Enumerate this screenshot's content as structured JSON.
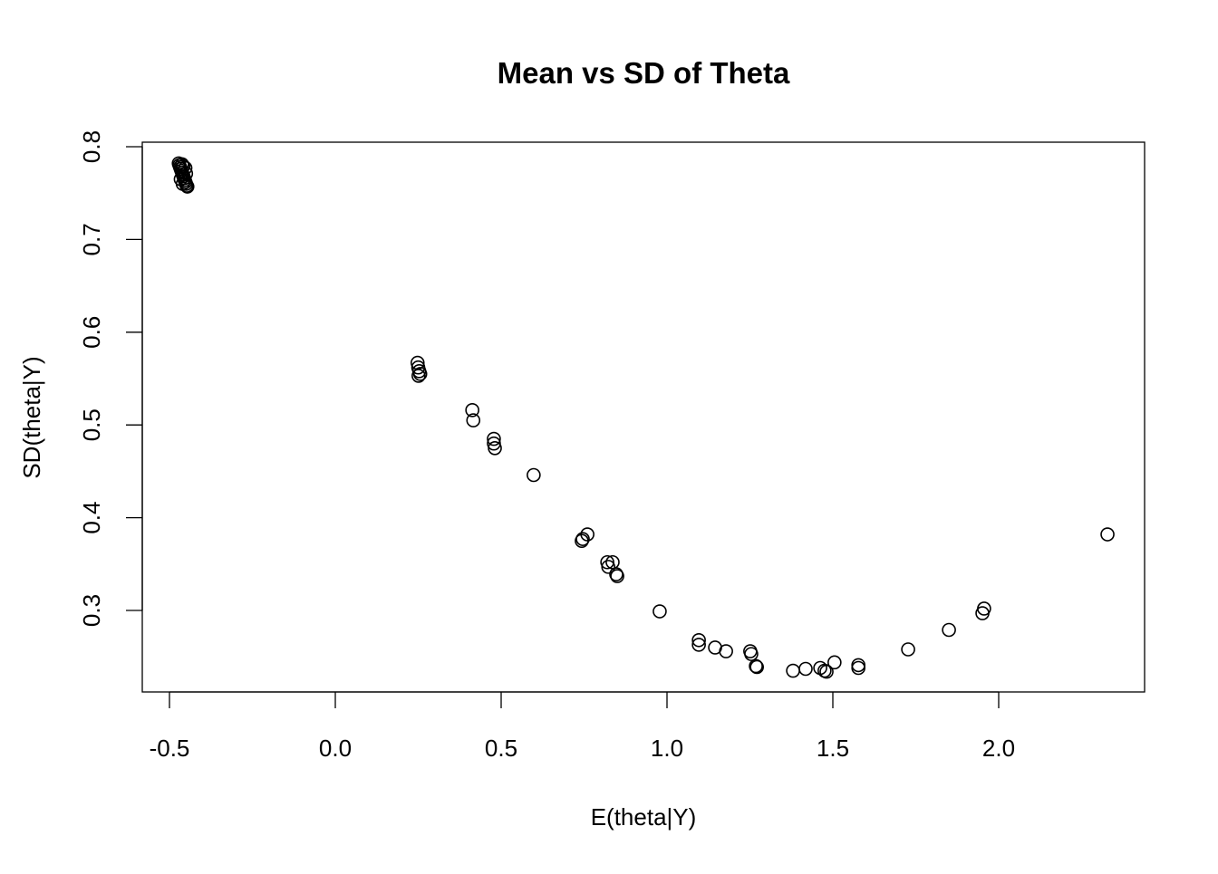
{
  "chart_data": {
    "type": "scatter",
    "title": "Mean vs SD of Theta",
    "xlabel": "E(theta|Y)",
    "ylabel": "SD(theta|Y)",
    "xlim": [
      -0.58,
      2.44
    ],
    "ylim": [
      0.213,
      0.805
    ],
    "xticks": [
      -0.5,
      0.0,
      0.5,
      1.0,
      1.5,
      2.0
    ],
    "xtick_labels": [
      "-0.5",
      "0.0",
      "0.5",
      "1.0",
      "1.5",
      "2.0"
    ],
    "yticks": [
      0.3,
      0.4,
      0.5,
      0.6,
      0.7,
      0.8
    ],
    "ytick_labels": [
      "0.3",
      "0.4",
      "0.5",
      "0.6",
      "0.7",
      "0.8"
    ],
    "grid": false,
    "marker": "open-circle",
    "color": "#000000",
    "points": [
      [
        -0.472,
        0.782
      ],
      [
        -0.47,
        0.78
      ],
      [
        -0.468,
        0.778
      ],
      [
        -0.466,
        0.776
      ],
      [
        -0.464,
        0.774
      ],
      [
        -0.462,
        0.772
      ],
      [
        -0.46,
        0.77
      ],
      [
        -0.458,
        0.768
      ],
      [
        -0.456,
        0.766
      ],
      [
        -0.454,
        0.764
      ],
      [
        -0.452,
        0.762
      ],
      [
        -0.45,
        0.76
      ],
      [
        -0.448,
        0.758
      ],
      [
        -0.446,
        0.757
      ],
      [
        -0.462,
        0.781
      ],
      [
        -0.458,
        0.779
      ],
      [
        -0.452,
        0.777
      ],
      [
        -0.45,
        0.771
      ],
      [
        -0.466,
        0.765
      ],
      [
        -0.46,
        0.76
      ],
      [
        0.248,
        0.567
      ],
      [
        0.25,
        0.562
      ],
      [
        0.253,
        0.558
      ],
      [
        0.256,
        0.555
      ],
      [
        0.251,
        0.553
      ],
      [
        0.413,
        0.516
      ],
      [
        0.416,
        0.505
      ],
      [
        0.478,
        0.485
      ],
      [
        0.478,
        0.48
      ],
      [
        0.481,
        0.475
      ],
      [
        0.598,
        0.446
      ],
      [
        0.743,
        0.375
      ],
      [
        0.746,
        0.377
      ],
      [
        0.76,
        0.382
      ],
      [
        0.82,
        0.352
      ],
      [
        0.823,
        0.347
      ],
      [
        0.836,
        0.352
      ],
      [
        0.847,
        0.339
      ],
      [
        0.85,
        0.337
      ],
      [
        0.978,
        0.299
      ],
      [
        1.096,
        0.268
      ],
      [
        1.096,
        0.263
      ],
      [
        1.145,
        0.26
      ],
      [
        1.178,
        0.256
      ],
      [
        1.251,
        0.256
      ],
      [
        1.254,
        0.253
      ],
      [
        1.268,
        0.24
      ],
      [
        1.271,
        0.239
      ],
      [
        1.38,
        0.235
      ],
      [
        1.418,
        0.237
      ],
      [
        1.462,
        0.238
      ],
      [
        1.475,
        0.235
      ],
      [
        1.481,
        0.234
      ],
      [
        1.505,
        0.244
      ],
      [
        1.577,
        0.241
      ],
      [
        1.577,
        0.238
      ],
      [
        1.727,
        0.258
      ],
      [
        1.85,
        0.279
      ],
      [
        1.951,
        0.297
      ],
      [
        1.956,
        0.302
      ],
      [
        2.328,
        0.382
      ]
    ]
  }
}
